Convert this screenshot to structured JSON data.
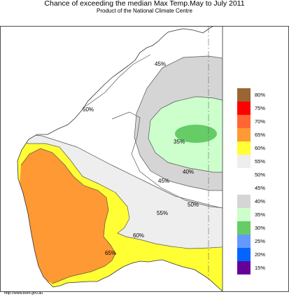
{
  "title": "Chance of exceeding the median Max Temp.May to July 2011",
  "subtitle": "Product of the National Climate Centre",
  "credit": "http://www.bom.gov.au",
  "contour_labels": [
    "45%",
    "50%",
    "35%",
    "40%",
    "45%",
    "50%",
    "55%",
    "60%",
    "65%"
  ],
  "legend": {
    "items": [
      {
        "label": "80%",
        "color": "#996633"
      },
      {
        "label": "75%",
        "color": "#ff0000"
      },
      {
        "label": "70%",
        "color": "#ff6633"
      },
      {
        "label": "65%",
        "color": "#ff9933"
      },
      {
        "label": "60%",
        "color": "#ffff33"
      },
      {
        "label": "55%",
        "color": "#eeeeee"
      },
      {
        "label": "50%",
        "color": "#ffffff"
      },
      {
        "label": "45%",
        "color": "#ffffff"
      },
      {
        "label": "40%",
        "color": "#d5d5d5"
      },
      {
        "label": "35%",
        "color": "#ccffcc"
      },
      {
        "label": "30%",
        "color": "#66cc66"
      },
      {
        "label": "25%",
        "color": "#6699ff"
      },
      {
        "label": "20%",
        "color": "#0066ff"
      },
      {
        "label": "15%",
        "color": "#660099"
      }
    ]
  },
  "region_colors": {
    "ocean": "#ffffff",
    "orange": "#ff9933",
    "yellow": "#ffff33",
    "light_grey": "#eeeeee",
    "grey": "#d5d5d5",
    "light_green": "#ccffcc",
    "green": "#66cc66"
  }
}
